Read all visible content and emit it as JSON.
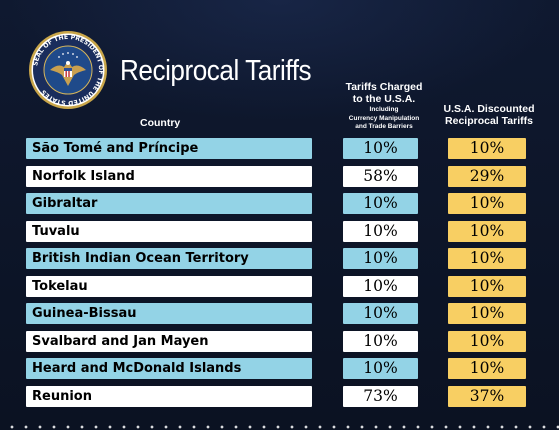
{
  "seal": {
    "ring_text_top": "SEAL OF THE PRESIDENT OF THE UNITED STATES"
  },
  "header": {
    "title": "Reciprocal Tariffs",
    "col_country": "Country",
    "col_charged_line1": "Tariffs Charged",
    "col_charged_line2": "to the U.S.A.",
    "col_charged_sub1": "Including",
    "col_charged_sub2": "Currency Manipulation",
    "col_charged_sub3": "and Trade Barriers",
    "col_discounted_line1": "U.S.A. Discounted",
    "col_discounted_line2": "Reciprocal Tariffs"
  },
  "colors": {
    "background": "#0d1526",
    "row_blue": "#93d3e6",
    "row_white": "#ffffff",
    "discounted_yellow": "#f8cf63"
  },
  "rows": [
    {
      "country": "São Tomé and Príncipe",
      "charged": "10%",
      "discounted": "10%"
    },
    {
      "country": "Norfolk Island",
      "charged": "58%",
      "discounted": "29%"
    },
    {
      "country": "Gibraltar",
      "charged": "10%",
      "discounted": "10%"
    },
    {
      "country": "Tuvalu",
      "charged": "10%",
      "discounted": "10%"
    },
    {
      "country": "British Indian Ocean Territory",
      "charged": "10%",
      "discounted": "10%"
    },
    {
      "country": "Tokelau",
      "charged": "10%",
      "discounted": "10%"
    },
    {
      "country": "Guinea-Bissau",
      "charged": "10%",
      "discounted": "10%"
    },
    {
      "country": "Svalbard and Jan Mayen",
      "charged": "10%",
      "discounted": "10%"
    },
    {
      "country": "Heard and McDonald Islands",
      "charged": "10%",
      "discounted": "10%"
    },
    {
      "country": "Reunion",
      "charged": "73%",
      "discounted": "37%"
    }
  ]
}
